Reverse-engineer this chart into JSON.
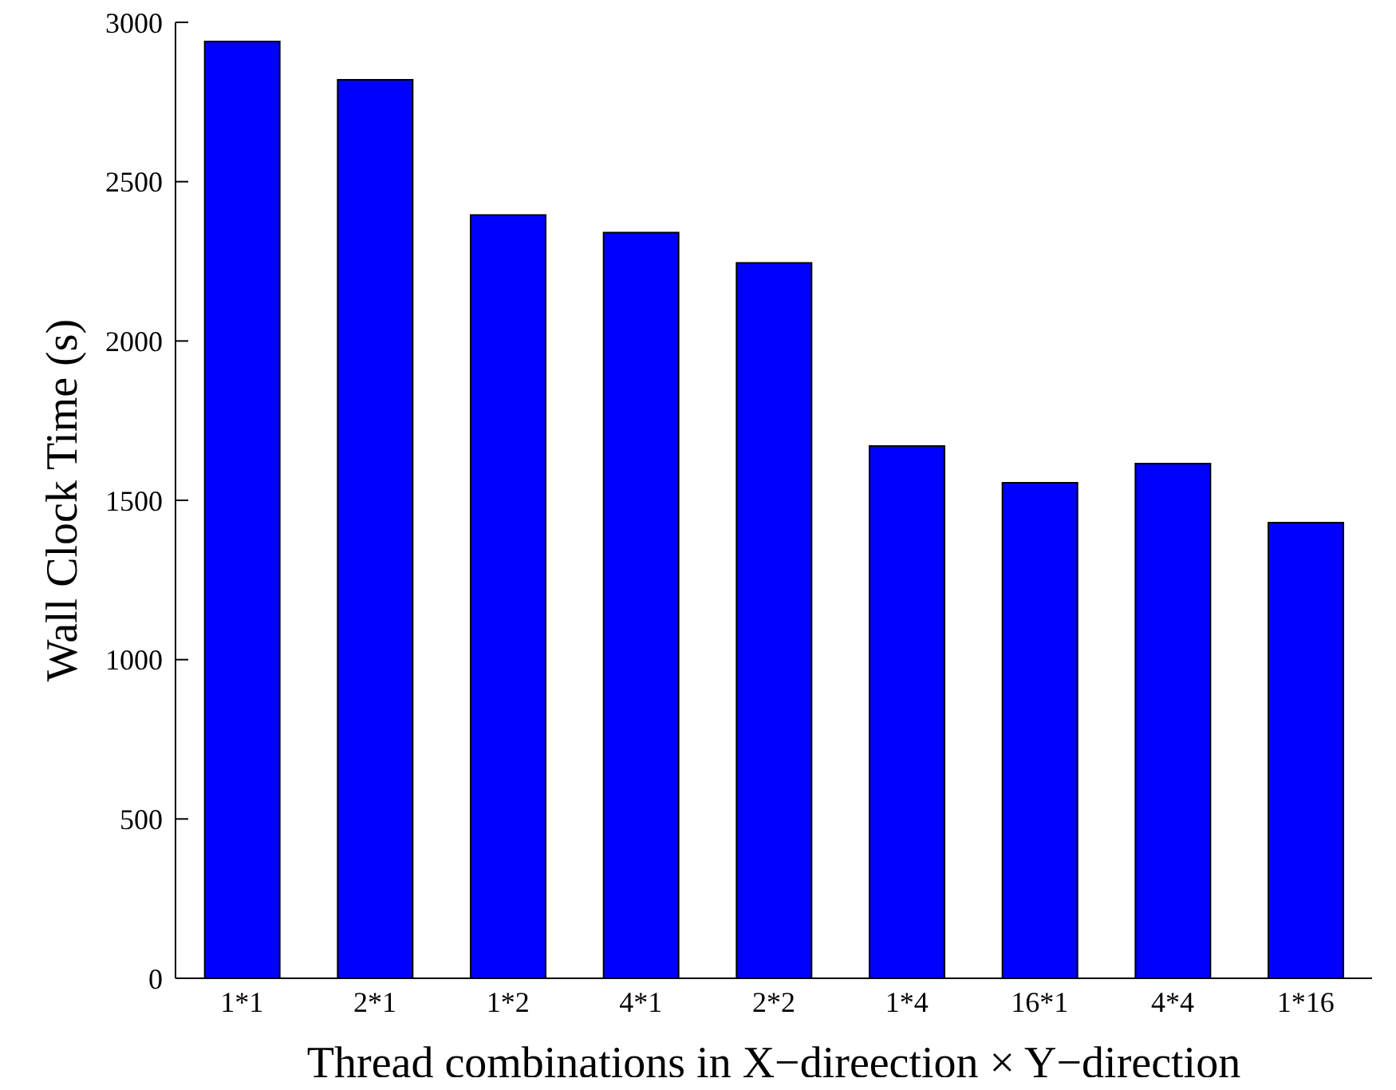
{
  "chart_data": {
    "type": "bar",
    "xlabel": "Thread combinations in X−direection × Y−direction",
    "ylabel": "Wall Clock Time (s)",
    "categories": [
      "1*1",
      "2*1",
      "1*2",
      "4*1",
      "2*2",
      "1*4",
      "16*1",
      "4*4",
      "1*16"
    ],
    "values": [
      2940,
      2820,
      2395,
      2340,
      2245,
      1670,
      1555,
      1615,
      1430
    ],
    "color": "#0000ff",
    "ylim": [
      0,
      3000
    ],
    "yticks": [
      0,
      500,
      1000,
      1500,
      2000,
      2500,
      3000
    ],
    "grid": false,
    "legend": false
  }
}
